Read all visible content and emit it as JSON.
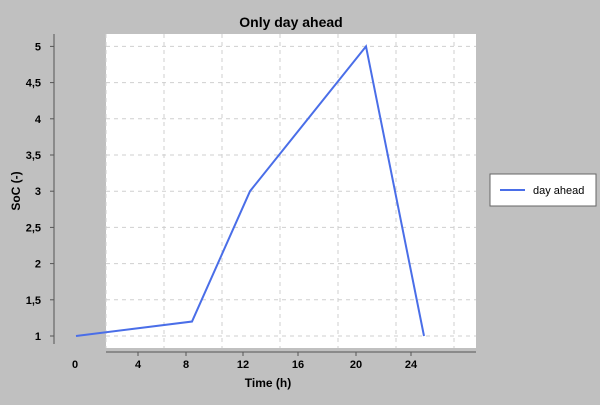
{
  "chart_data": {
    "type": "line",
    "title": "Only day ahead",
    "xlabel": "Time  (h)",
    "ylabel": "SoC (-)",
    "x_ticks": [
      "0",
      "4",
      "8",
      "12",
      "16",
      "20",
      "24"
    ],
    "y_ticks": [
      "1",
      "1,5",
      "2",
      "2,5",
      "3",
      "3,5",
      "4",
      "4,5",
      "5"
    ],
    "series": [
      {
        "name": "day ahead",
        "color": "#4a6ee8",
        "points": [
          {
            "x": 2,
            "y": 1.0
          },
          {
            "x": 6,
            "y": 1.1
          },
          {
            "x": 10,
            "y": 1.2
          },
          {
            "x": 14,
            "y": 3.0
          },
          {
            "x": 22,
            "y": 5.0
          },
          {
            "x": 26,
            "y": 1.0
          }
        ]
      }
    ],
    "legend_position": "right",
    "grid": true
  }
}
